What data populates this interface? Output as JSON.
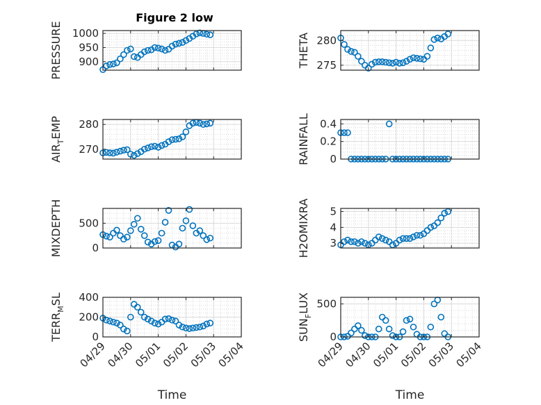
{
  "figure_title": "Figure 2 low",
  "x_axis_label": "Time",
  "colors": {
    "marker": "#0072bd",
    "axis": "#262626",
    "grid": "#d9d9d9"
  },
  "chart_data": [
    {
      "type": "scatter",
      "title": "Figure 2 low",
      "ylabel": "PRESSURE",
      "xlabel": "",
      "xlim": [
        "04/29",
        "05/04"
      ],
      "ylim": [
        870,
        1010
      ],
      "yticks": [
        900,
        950,
        1000
      ],
      "xticks": [
        "04/29",
        "04/30",
        "05/01",
        "05/02",
        "05/03",
        "05/04"
      ],
      "grid": true,
      "series": [
        {
          "x": [
            "04/29 00:00",
            "04/29 03:00",
            "04/29 06:00",
            "04/29 09:00",
            "04/29 12:00",
            "04/29 15:00",
            "04/29 18:00",
            "04/29 21:00",
            "04/30 00:00",
            "04/30 03:00",
            "04/30 06:00",
            "04/30 09:00",
            "04/30 12:00",
            "04/30 15:00",
            "04/30 18:00",
            "04/30 21:00",
            "05/01 00:00",
            "05/01 03:00",
            "05/01 06:00",
            "05/01 09:00",
            "05/01 12:00",
            "05/01 15:00",
            "05/01 18:00",
            "05/01 21:00",
            "05/02 00:00",
            "05/02 03:00",
            "05/02 06:00",
            "05/02 09:00",
            "05/02 12:00",
            "05/02 15:00",
            "05/02 18:00",
            "05/02 21:00"
          ],
          "values": [
            872,
            885,
            890,
            892,
            896,
            910,
            925,
            940,
            945,
            918,
            915,
            925,
            935,
            940,
            942,
            950,
            948,
            945,
            940,
            944,
            955,
            962,
            965,
            968,
            975,
            982,
            990,
            998,
            1002,
            1000,
            997,
            995
          ]
        }
      ]
    },
    {
      "type": "scatter",
      "ylabel": "THETA",
      "xlabel": "",
      "xlim": [
        "04/29",
        "05/04"
      ],
      "ylim": [
        274,
        282
      ],
      "yticks": [
        275,
        280
      ],
      "xticks": [
        "04/29",
        "04/30",
        "05/01",
        "05/02",
        "05/03",
        "05/04"
      ],
      "grid": true,
      "series": [
        {
          "x": [
            "04/29 00:00",
            "04/29 03:00",
            "04/29 06:00",
            "04/29 09:00",
            "04/29 12:00",
            "04/29 15:00",
            "04/29 18:00",
            "04/29 21:00",
            "04/30 00:00",
            "04/30 03:00",
            "04/30 06:00",
            "04/30 09:00",
            "04/30 12:00",
            "04/30 15:00",
            "04/30 18:00",
            "04/30 21:00",
            "05/01 00:00",
            "05/01 03:00",
            "05/01 06:00",
            "05/01 09:00",
            "05/01 12:00",
            "05/01 15:00",
            "05/01 18:00",
            "05/01 21:00",
            "05/02 00:00",
            "05/02 03:00",
            "05/02 06:00",
            "05/02 09:00",
            "05/02 12:00",
            "05/02 15:00",
            "05/02 18:00",
            "05/02 21:00"
          ],
          "values": [
            280.5,
            279.2,
            278.2,
            277.8,
            277.6,
            276.8,
            275.8,
            275.0,
            274.4,
            275.2,
            275.6,
            275.7,
            275.7,
            275.6,
            275.5,
            275.4,
            275.6,
            275.4,
            275.5,
            275.8,
            276.2,
            276.5,
            276.4,
            276.3,
            276.2,
            276.8,
            278.5,
            280.2,
            280.5,
            280.3,
            280.8,
            281.3
          ]
        }
      ]
    },
    {
      "type": "scatter",
      "ylabel": "AIR_TEMP",
      "xlabel": "",
      "xlim": [
        "04/29",
        "05/04"
      ],
      "ylim": [
        266,
        282
      ],
      "yticks": [
        270,
        280
      ],
      "xticks": [
        "04/29",
        "04/30",
        "05/01",
        "05/02",
        "05/03",
        "05/04"
      ],
      "grid": true,
      "series": [
        {
          "x": [
            "04/29 00:00",
            "04/29 03:00",
            "04/29 06:00",
            "04/29 09:00",
            "04/29 12:00",
            "04/29 15:00",
            "04/29 18:00",
            "04/29 21:00",
            "04/30 00:00",
            "04/30 03:00",
            "04/30 06:00",
            "04/30 09:00",
            "04/30 12:00",
            "04/30 15:00",
            "04/30 18:00",
            "04/30 21:00",
            "05/01 00:00",
            "05/01 03:00",
            "05/01 06:00",
            "05/01 09:00",
            "05/01 12:00",
            "05/01 15:00",
            "05/01 18:00",
            "05/01 21:00",
            "05/02 00:00",
            "05/02 03:00",
            "05/02 06:00",
            "05/02 09:00",
            "05/02 12:00",
            "05/02 15:00",
            "05/02 18:00",
            "05/02 21:00"
          ],
          "values": [
            268.5,
            268.7,
            268.5,
            268.4,
            268.8,
            269.2,
            269.6,
            269.8,
            268.0,
            267.5,
            268.2,
            269.0,
            270.0,
            270.5,
            271.0,
            271.2,
            270.8,
            271.5,
            272.0,
            273.0,
            273.8,
            274.0,
            274.2,
            275.0,
            277.0,
            279.5,
            280.5,
            280.8,
            280.5,
            280.0,
            280.2,
            280.5
          ]
        }
      ]
    },
    {
      "type": "scatter",
      "ylabel": "RAINFALL",
      "xlabel": "",
      "xlim": [
        "04/29",
        "05/04"
      ],
      "ylim": [
        0,
        0.45
      ],
      "yticks": [
        0,
        0.2,
        0.4
      ],
      "xticks": [
        "04/29",
        "04/30",
        "05/01",
        "05/02",
        "05/03",
        "05/04"
      ],
      "grid": true,
      "series": [
        {
          "x": [
            "04/29 00:00",
            "04/29 03:00",
            "04/29 06:00",
            "04/29 09:00",
            "04/29 12:00",
            "04/29 15:00",
            "04/29 18:00",
            "04/29 21:00",
            "04/30 00:00",
            "04/30 03:00",
            "04/30 06:00",
            "04/30 09:00",
            "04/30 12:00",
            "04/30 15:00",
            "04/30 18:00",
            "04/30 21:00",
            "05/01 00:00",
            "05/01 03:00",
            "05/01 06:00",
            "05/01 09:00",
            "05/01 12:00",
            "05/01 15:00",
            "05/01 18:00",
            "05/01 21:00",
            "05/02 00:00",
            "05/02 03:00",
            "05/02 06:00",
            "05/02 09:00",
            "05/02 12:00",
            "05/02 15:00",
            "05/02 18:00",
            "05/02 21:00"
          ],
          "values": [
            0.3,
            0.3,
            0.3,
            0,
            0,
            0,
            0,
            0,
            0,
            0,
            0,
            0,
            0,
            0,
            0.4,
            0,
            0,
            0,
            0,
            0,
            0,
            0,
            0,
            0,
            0,
            0,
            0,
            0,
            0,
            0,
            0,
            0
          ]
        }
      ]
    },
    {
      "type": "scatter",
      "ylabel": "MIXDEPTH",
      "xlabel": "",
      "xlim": [
        "04/29",
        "05/04"
      ],
      "ylim": [
        0,
        800
      ],
      "yticks": [
        0,
        500
      ],
      "xticks": [
        "04/29",
        "04/30",
        "05/01",
        "05/02",
        "05/03",
        "05/04"
      ],
      "grid": true,
      "series": [
        {
          "x": [
            "04/29 00:00",
            "04/29 03:00",
            "04/29 06:00",
            "04/29 09:00",
            "04/29 12:00",
            "04/29 15:00",
            "04/29 18:00",
            "04/29 21:00",
            "04/30 00:00",
            "04/30 03:00",
            "04/30 06:00",
            "04/30 09:00",
            "04/30 12:00",
            "04/30 15:00",
            "04/30 18:00",
            "04/30 21:00",
            "05/01 00:00",
            "05/01 03:00",
            "05/01 06:00",
            "05/01 09:00",
            "05/01 12:00",
            "05/01 15:00",
            "05/01 18:00",
            "05/01 21:00",
            "05/02 00:00",
            "05/02 03:00",
            "05/02 06:00",
            "05/02 09:00",
            "05/02 12:00",
            "05/02 15:00",
            "05/02 18:00",
            "05/02 21:00"
          ],
          "values": [
            270,
            240,
            220,
            300,
            360,
            250,
            180,
            220,
            350,
            480,
            600,
            380,
            250,
            120,
            80,
            130,
            150,
            300,
            520,
            760,
            60,
            20,
            80,
            400,
            550,
            780,
            450,
            300,
            350,
            250,
            170,
            200
          ]
        }
      ]
    },
    {
      "type": "scatter",
      "ylabel": "H2OMIXRA",
      "xlabel": "",
      "xlim": [
        "04/29",
        "05/04"
      ],
      "ylim": [
        2.7,
        5.2
      ],
      "yticks": [
        3,
        4,
        5
      ],
      "xticks": [
        "04/29",
        "04/30",
        "05/01",
        "05/02",
        "05/03",
        "05/04"
      ],
      "grid": true,
      "series": [
        {
          "x": [
            "04/29 00:00",
            "04/29 03:00",
            "04/29 06:00",
            "04/29 09:00",
            "04/29 12:00",
            "04/29 15:00",
            "04/29 18:00",
            "04/29 21:00",
            "04/30 00:00",
            "04/30 03:00",
            "04/30 06:00",
            "04/30 09:00",
            "04/30 12:00",
            "04/30 15:00",
            "04/30 18:00",
            "04/30 21:00",
            "05/01 00:00",
            "05/01 03:00",
            "05/01 06:00",
            "05/01 09:00",
            "05/01 12:00",
            "05/01 15:00",
            "05/01 18:00",
            "05/01 21:00",
            "05/02 00:00",
            "05/02 03:00",
            "05/02 06:00",
            "05/02 09:00",
            "05/02 12:00",
            "05/02 15:00",
            "05/02 18:00",
            "05/02 21:00"
          ],
          "values": [
            2.9,
            3.1,
            3.2,
            3.1,
            3.1,
            3.0,
            3.1,
            3.0,
            2.9,
            3.0,
            3.2,
            3.4,
            3.3,
            3.2,
            3.1,
            2.9,
            3.0,
            3.2,
            3.3,
            3.3,
            3.3,
            3.4,
            3.5,
            3.5,
            3.6,
            3.8,
            4.0,
            4.1,
            4.3,
            4.6,
            4.9,
            5.0
          ]
        }
      ]
    },
    {
      "type": "scatter",
      "ylabel": "TERR_MSL",
      "xlabel": "Time",
      "xlim": [
        "04/29",
        "05/04"
      ],
      "ylim": [
        0,
        400
      ],
      "yticks": [
        0,
        200,
        400
      ],
      "xticks": [
        "04/29",
        "04/30",
        "05/01",
        "05/02",
        "05/03",
        "05/04"
      ],
      "grid": true,
      "series": [
        {
          "x": [
            "04/29 00:00",
            "04/29 03:00",
            "04/29 06:00",
            "04/29 09:00",
            "04/29 12:00",
            "04/29 15:00",
            "04/29 18:00",
            "04/29 21:00",
            "04/30 00:00",
            "04/30 03:00",
            "04/30 06:00",
            "04/30 09:00",
            "04/30 12:00",
            "04/30 15:00",
            "04/30 18:00",
            "04/30 21:00",
            "05/01 00:00",
            "05/01 03:00",
            "05/01 06:00",
            "05/01 09:00",
            "05/01 12:00",
            "05/01 15:00",
            "05/01 18:00",
            "05/01 21:00",
            "05/02 00:00",
            "05/02 03:00",
            "05/02 06:00",
            "05/02 09:00",
            "05/02 12:00",
            "05/02 15:00",
            "05/02 18:00",
            "05/02 21:00"
          ],
          "values": [
            190,
            170,
            160,
            150,
            140,
            120,
            80,
            60,
            200,
            330,
            300,
            250,
            200,
            180,
            160,
            140,
            130,
            150,
            180,
            185,
            170,
            160,
            120,
            100,
            90,
            85,
            90,
            95,
            100,
            110,
            130,
            140
          ]
        }
      ]
    },
    {
      "type": "scatter",
      "ylabel": "SUN_FLUX",
      "xlabel": "Time",
      "xlim": [
        "04/29",
        "05/04"
      ],
      "ylim": [
        0,
        600
      ],
      "yticks": [
        0,
        500
      ],
      "xticks": [
        "04/29",
        "04/30",
        "05/01",
        "05/02",
        "05/03",
        "05/04"
      ],
      "grid": true,
      "series": [
        {
          "x": [
            "04/29 00:00",
            "04/29 03:00",
            "04/29 06:00",
            "04/29 09:00",
            "04/29 12:00",
            "04/29 15:00",
            "04/29 18:00",
            "04/29 21:00",
            "04/30 00:00",
            "04/30 03:00",
            "04/30 06:00",
            "04/30 09:00",
            "04/30 12:00",
            "04/30 15:00",
            "04/30 18:00",
            "04/30 21:00",
            "05/01 00:00",
            "05/01 03:00",
            "05/01 06:00",
            "05/01 09:00",
            "05/01 12:00",
            "05/01 15:00",
            "05/01 18:00",
            "05/01 21:00",
            "05/02 00:00",
            "05/02 03:00",
            "05/02 06:00",
            "05/02 09:00",
            "05/02 12:00",
            "05/02 15:00",
            "05/02 18:00",
            "05/02 21:00"
          ],
          "values": [
            0,
            0,
            10,
            60,
            120,
            170,
            100,
            20,
            0,
            0,
            0,
            120,
            300,
            250,
            120,
            20,
            0,
            0,
            80,
            250,
            270,
            150,
            40,
            0,
            0,
            0,
            150,
            500,
            560,
            300,
            50,
            0
          ]
        }
      ]
    }
  ]
}
